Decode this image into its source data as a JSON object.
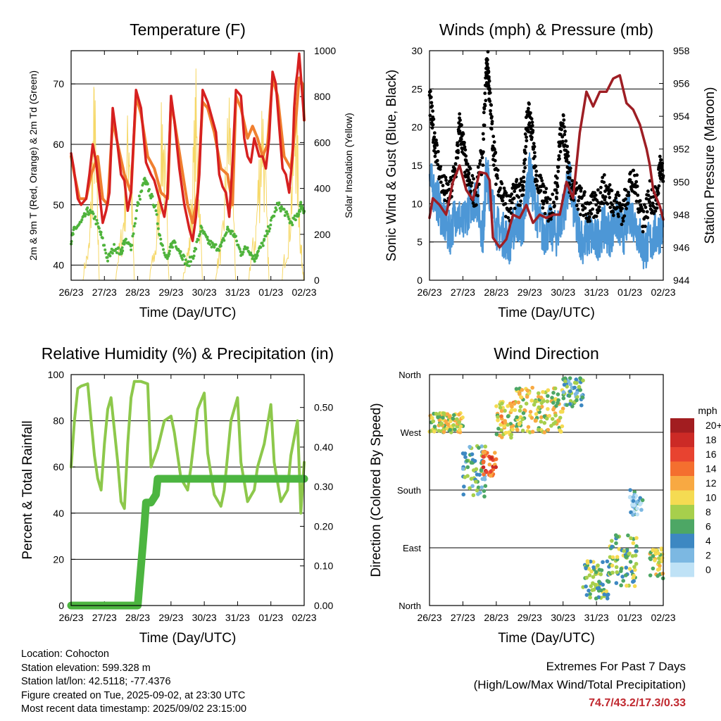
{
  "chart_data": [
    {
      "id": "temperature",
      "type": "line",
      "title": "Temperature (F)",
      "xlabel": "Time (Day/UTC)",
      "ylabel": "2m & 9m T (Red, Orange) & 2m Td (Green)",
      "ylabel_right": "Solar Insolation (Yellow)",
      "x_ticks": [
        "26/23",
        "27/23",
        "28/23",
        "29/23",
        "30/23",
        "31/23",
        "01/23",
        "02/23"
      ],
      "y_ticks": [
        40,
        50,
        60,
        70
      ],
      "y_lim": [
        37.5,
        75.5
      ],
      "y2_ticks": [
        0,
        200,
        400,
        600,
        800,
        1000
      ],
      "y2_lim": [
        0,
        1000
      ],
      "x_lim": [
        0,
        7
      ],
      "series": [
        {
          "name": "2m T",
          "color": "#d62020",
          "axis": "left",
          "x": [
            0,
            0.08,
            0.2,
            0.3,
            0.45,
            0.55,
            0.65,
            0.75,
            0.85,
            0.95,
            1.05,
            1.15,
            1.25,
            1.35,
            1.5,
            1.6,
            1.7,
            1.8,
            1.95,
            2.1,
            2.25,
            2.4,
            2.5,
            2.6,
            2.7,
            2.8,
            2.9,
            3.0,
            3.1,
            3.25,
            3.4,
            3.55,
            3.65,
            3.75,
            3.85,
            3.95,
            4.1,
            4.25,
            4.35,
            4.45,
            4.55,
            4.65,
            4.75,
            4.85,
            4.95,
            5.1,
            5.2,
            5.3,
            5.4,
            5.5,
            5.65,
            5.75,
            5.85,
            5.95,
            6.05,
            6.15,
            6.25,
            6.35,
            6.45,
            6.55,
            6.65,
            6.7,
            6.75,
            6.8,
            6.85,
            6.92,
            7.0
          ],
          "y": [
            58.5,
            56,
            51,
            50,
            51,
            55,
            60,
            57,
            52,
            47,
            49,
            52,
            66,
            62,
            55,
            54,
            49,
            52,
            69,
            66,
            57,
            55,
            54,
            52,
            50,
            48,
            52,
            68,
            64,
            56,
            50,
            46,
            44,
            48,
            55,
            69,
            67,
            64,
            62,
            55,
            53,
            52,
            48,
            57,
            69,
            68,
            61,
            58,
            57,
            61,
            58,
            58,
            56,
            61,
            72,
            70,
            63,
            56,
            55,
            52,
            58,
            66,
            70,
            72,
            75,
            70,
            64
          ]
        },
        {
          "name": "9m T",
          "color": "#f07f2f",
          "axis": "left",
          "x": [
            0,
            0.1,
            0.25,
            0.45,
            0.6,
            0.8,
            0.95,
            1.1,
            1.25,
            1.4,
            1.6,
            1.8,
            1.95,
            2.1,
            2.3,
            2.5,
            2.7,
            2.9,
            3.0,
            3.1,
            3.3,
            3.5,
            3.65,
            3.8,
            3.95,
            4.1,
            4.3,
            4.5,
            4.7,
            4.85,
            4.95,
            5.1,
            5.3,
            5.45,
            5.6,
            5.75,
            5.9,
            6.05,
            6.2,
            6.4,
            6.6,
            6.75,
            6.85,
            6.95,
            7.0
          ],
          "y": [
            58,
            55,
            51,
            51,
            55,
            58,
            51,
            50,
            64,
            60,
            55,
            52,
            68,
            65,
            58,
            56,
            52,
            51,
            67,
            64,
            57,
            50,
            47,
            52,
            67,
            66,
            62,
            56,
            55,
            50,
            68,
            66,
            61,
            63,
            61,
            58,
            60,
            71,
            68,
            58,
            56,
            64,
            71,
            70,
            64
          ]
        },
        {
          "name": "2m Td",
          "color": "#4fb33c",
          "axis": "left",
          "style": "dots",
          "x": [
            0,
            0.1,
            0.3,
            0.5,
            0.7,
            0.9,
            1.1,
            1.3,
            1.5,
            1.6,
            1.8,
            2.0,
            2.2,
            2.3,
            2.5,
            2.7,
            2.9,
            3.0,
            3.1,
            3.3,
            3.5,
            3.7,
            3.9,
            4.1,
            4.3,
            4.5,
            4.7,
            4.9,
            5.1,
            5.3,
            5.5,
            5.6,
            5.8,
            6.0,
            6.2,
            6.4,
            6.6,
            6.8,
            6.9,
            7.0
          ],
          "y": [
            44,
            46,
            47,
            49,
            48,
            45,
            41,
            43,
            42,
            44,
            43,
            50,
            54,
            53,
            50,
            44,
            41,
            43,
            44,
            42,
            40,
            42,
            46,
            44,
            43,
            43,
            46,
            45,
            42,
            43,
            41,
            42,
            44,
            47,
            50,
            49,
            47,
            48,
            50,
            49
          ]
        },
        {
          "name": "Solar Insolation",
          "color": "#f6d868",
          "axis": "right",
          "x": [
            0.3,
            0.55,
            0.7,
            0.85,
            1.0,
            1.3,
            1.55,
            1.75,
            1.9,
            2.1,
            2.3,
            2.55,
            2.75,
            2.95,
            3.05,
            3.3,
            3.55,
            3.75,
            3.95,
            4.1,
            4.3,
            4.55,
            4.75,
            4.95,
            5.05,
            5.3,
            5.55,
            5.75,
            5.95,
            6.05,
            6.3,
            6.55,
            6.75,
            6.9,
            7.0
          ],
          "y": [
            0,
            200,
            980,
            0,
            0,
            0,
            300,
            930,
            0,
            0,
            0,
            200,
            920,
            0,
            0,
            0,
            200,
            940,
            0,
            0,
            0,
            250,
            960,
            0,
            0,
            0,
            300,
            980,
            0,
            0,
            0,
            300,
            970,
            200,
            0
          ]
        }
      ]
    },
    {
      "id": "winds",
      "type": "line",
      "title": "Winds (mph) & Pressure (mb)",
      "xlabel": "Time (Day/UTC)",
      "ylabel": "Sonic Wind & Gust (Blue, Black)",
      "ylabel_right": "Station Pressure (Maroon)",
      "x_ticks": [
        "26/23",
        "27/23",
        "28/23",
        "29/23",
        "30/23",
        "31/23",
        "01/23",
        "02/23"
      ],
      "y_ticks": [
        0,
        5,
        10,
        15,
        20,
        25,
        30
      ],
      "y_lim": [
        0,
        30
      ],
      "y2_ticks": [
        944,
        946,
        948,
        950,
        952,
        954,
        956,
        958
      ],
      "y2_lim": [
        944,
        958
      ],
      "x_lim": [
        0,
        7
      ],
      "series": [
        {
          "name": "Sonic Wind",
          "color": "#4d97d6",
          "axis": "left",
          "x": [
            0,
            0.2,
            0.4,
            0.6,
            0.8,
            1.0,
            1.2,
            1.4,
            1.6,
            1.7,
            1.8,
            2.0,
            2.2,
            2.4,
            2.6,
            2.8,
            2.9,
            3.0,
            3.2,
            3.4,
            3.6,
            3.8,
            4.0,
            4.2,
            4.4,
            4.6,
            4.8,
            5.0,
            5.2,
            5.4,
            5.6,
            5.8,
            6.0,
            6.2,
            6.4,
            6.6,
            6.8,
            7.0
          ],
          "y": [
            13,
            11,
            8,
            6,
            9,
            7,
            10,
            11,
            6,
            14,
            12,
            7,
            6,
            5,
            8,
            7,
            11,
            14,
            9,
            6,
            7,
            6,
            9,
            13,
            7,
            5,
            6,
            5,
            7,
            6,
            8,
            6,
            9,
            7,
            4,
            5,
            6,
            7
          ]
        },
        {
          "name": "Gust",
          "color": "#000000",
          "axis": "left",
          "style": "dots",
          "x": [
            0,
            0.1,
            0.2,
            0.4,
            0.6,
            0.8,
            0.9,
            1.0,
            1.1,
            1.2,
            1.4,
            1.6,
            1.7,
            1.75,
            1.8,
            1.9,
            2.0,
            2.2,
            2.4,
            2.6,
            2.8,
            2.9,
            3.0,
            3.1,
            3.2,
            3.4,
            3.6,
            3.8,
            3.9,
            4.0,
            4.1,
            4.2,
            4.4,
            4.6,
            4.8,
            5.0,
            5.2,
            5.4,
            5.6,
            5.8,
            6.0,
            6.2,
            6.4,
            6.6,
            6.8,
            6.9,
            7.0
          ],
          "y": [
            24,
            20,
            17,
            12,
            11,
            15,
            20,
            18,
            14,
            13,
            11,
            17,
            27,
            28,
            24,
            18,
            14,
            11,
            9,
            12,
            11,
            20,
            22,
            18,
            13,
            11,
            9,
            12,
            18,
            20,
            17,
            13,
            11,
            10,
            9,
            10,
            12,
            11,
            10,
            9,
            13,
            12,
            8,
            11,
            10,
            15,
            13
          ]
        },
        {
          "name": "Station Pressure",
          "color": "#9e1e24",
          "axis": "right",
          "x": [
            0,
            0.1,
            0.3,
            0.5,
            0.7,
            0.9,
            1.1,
            1.3,
            1.5,
            1.7,
            1.8,
            1.9,
            2.1,
            2.3,
            2.5,
            2.7,
            2.9,
            3.1,
            3.3,
            3.5,
            3.7,
            3.9,
            4.1,
            4.3,
            4.5,
            4.7,
            4.9,
            5.1,
            5.3,
            5.5,
            5.7,
            5.9,
            6.1,
            6.3,
            6.5,
            6.6,
            6.7,
            6.8,
            6.9,
            7.0
          ],
          "y": [
            947.8,
            949,
            948.6,
            948,
            950,
            951,
            949.5,
            948.9,
            950.6,
            950.5,
            950.1,
            946.6,
            946,
            946.5,
            948,
            947.8,
            948.6,
            947.5,
            948,
            947.8,
            948,
            948,
            950,
            949,
            953,
            955.5,
            954.6,
            955.5,
            955.5,
            956.3,
            956.5,
            954.8,
            954.4,
            953.5,
            952,
            951,
            949.5,
            949,
            948.5,
            947.7
          ]
        }
      ]
    },
    {
      "id": "humidity",
      "type": "line",
      "title": "Relative Humidity (%) & Precipitation (in)",
      "xlabel": "Time (Day/UTC)",
      "ylabel": "Percent & Total Rainfall",
      "x_ticks": [
        "26/23",
        "27/23",
        "28/23",
        "29/23",
        "30/23",
        "31/23",
        "01/23",
        "02/23"
      ],
      "y_ticks": [
        0,
        20,
        40,
        60,
        80,
        100
      ],
      "y_lim": [
        0,
        100
      ],
      "y2_ticks": [
        "0.00",
        "0.10",
        "0.20",
        "0.30",
        "0.40",
        "0.50"
      ],
      "y2_lim": [
        0,
        0.583
      ],
      "x_lim": [
        0,
        7
      ],
      "series": [
        {
          "name": "Relative Humidity",
          "color": "#8dc84b",
          "axis": "left",
          "x": [
            0,
            0.1,
            0.2,
            0.3,
            0.5,
            0.6,
            0.7,
            0.8,
            0.9,
            1.0,
            1.1,
            1.2,
            1.4,
            1.5,
            1.6,
            1.7,
            1.8,
            1.9,
            2.1,
            2.3,
            2.4,
            2.6,
            2.8,
            3.0,
            3.1,
            3.3,
            3.5,
            3.6,
            3.8,
            4.0,
            4.1,
            4.3,
            4.5,
            4.6,
            4.8,
            5.0,
            5.1,
            5.3,
            5.5,
            5.6,
            5.8,
            6.0,
            6.1,
            6.3,
            6.5,
            6.6,
            6.8,
            6.9,
            7.0
          ],
          "y": [
            60,
            80,
            94,
            95,
            96,
            80,
            65,
            55,
            50,
            70,
            85,
            90,
            62,
            45,
            42,
            70,
            90,
            97,
            97,
            96,
            60,
            68,
            80,
            82,
            75,
            55,
            50,
            60,
            85,
            92,
            66,
            48,
            43,
            50,
            80,
            90,
            62,
            45,
            50,
            60,
            70,
            87,
            62,
            45,
            50,
            65,
            80,
            40,
            62
          ]
        },
        {
          "name": "Total Precipitation",
          "color": "#4cb540",
          "axis": "right",
          "x": [
            0,
            1.0,
            2.0,
            2.05,
            2.1,
            2.15,
            2.2,
            2.25,
            2.4,
            2.55,
            2.6,
            3.0,
            4.0,
            5.0,
            6.0,
            7.0
          ],
          "y": [
            0,
            0,
            0,
            0.05,
            0.1,
            0.15,
            0.2,
            0.26,
            0.26,
            0.28,
            0.32,
            0.32,
            0.32,
            0.32,
            0.32,
            0.32
          ]
        }
      ]
    },
    {
      "id": "direction",
      "type": "scatter",
      "title": "Wind Direction",
      "xlabel": "Time (Day/UTC)",
      "ylabel": "Direction (Colored By Speed)",
      "x_ticks": [
        "26/23",
        "27/23",
        "28/23",
        "29/23",
        "30/23",
        "31/23",
        "01/23",
        "02/23"
      ],
      "y_ticks": [
        "North",
        "East",
        "South",
        "West",
        "North"
      ],
      "y_lim": [
        0,
        360
      ],
      "x_lim": [
        0,
        7
      ],
      "legend": {
        "title": "mph",
        "labels": [
          "20+",
          "18",
          "16",
          "14",
          "12",
          "10",
          "8",
          "6",
          "4",
          "2",
          "0"
        ],
        "colors": [
          "#a21d20",
          "#cc2a26",
          "#e84330",
          "#f46f2f",
          "#f8a942",
          "#f5db52",
          "#a7cf4c",
          "#4da765",
          "#3d88c2",
          "#7cb8e2",
          "#bfe2f6"
        ]
      },
      "clusters": [
        {
          "x0": 0.0,
          "x1": 1.0,
          "dir0": 270,
          "dir1": 300,
          "speed": 9
        },
        {
          "x0": 1.0,
          "x1": 1.7,
          "dir0": 170,
          "dir1": 250,
          "speed": 5
        },
        {
          "x0": 1.6,
          "x1": 2.0,
          "dir0": 200,
          "dir1": 240,
          "speed": 15
        },
        {
          "x0": 2.0,
          "x1": 2.6,
          "dir0": 260,
          "dir1": 320,
          "speed": 10
        },
        {
          "x0": 2.6,
          "x1": 4.0,
          "dir0": 270,
          "dir1": 340,
          "speed": 9
        },
        {
          "x0": 4.0,
          "x1": 4.6,
          "dir0": 310,
          "dir1": 355,
          "speed": 5
        },
        {
          "x0": 4.6,
          "x1": 5.4,
          "dir0": 10,
          "dir1": 70,
          "speed": 7
        },
        {
          "x0": 5.4,
          "x1": 6.2,
          "dir0": 30,
          "dir1": 110,
          "speed": 7
        },
        {
          "x0": 6.0,
          "x1": 6.4,
          "dir0": 140,
          "dir1": 180,
          "speed": 3
        },
        {
          "x0": 6.6,
          "x1": 7.0,
          "dir0": 40,
          "dir1": 90,
          "speed": 9
        }
      ]
    }
  ],
  "info": {
    "location": "Location: Cohocton",
    "elevation": "Station elevation: 599.328 m",
    "latlon": "Station lat/lon: 42.5118; -77.4376",
    "created": "Figure created on Tue, 2025-09-02, at 23:30 UTC",
    "recent": "Most recent data timestamp: 2025/09/02 23:15:00"
  },
  "extremes": {
    "title": "Extremes For Past 7 Days",
    "subtitle": "(High/Low/Max Wind/Total Precipitation)",
    "values": "74.7/43.2/17.3/0.33"
  }
}
